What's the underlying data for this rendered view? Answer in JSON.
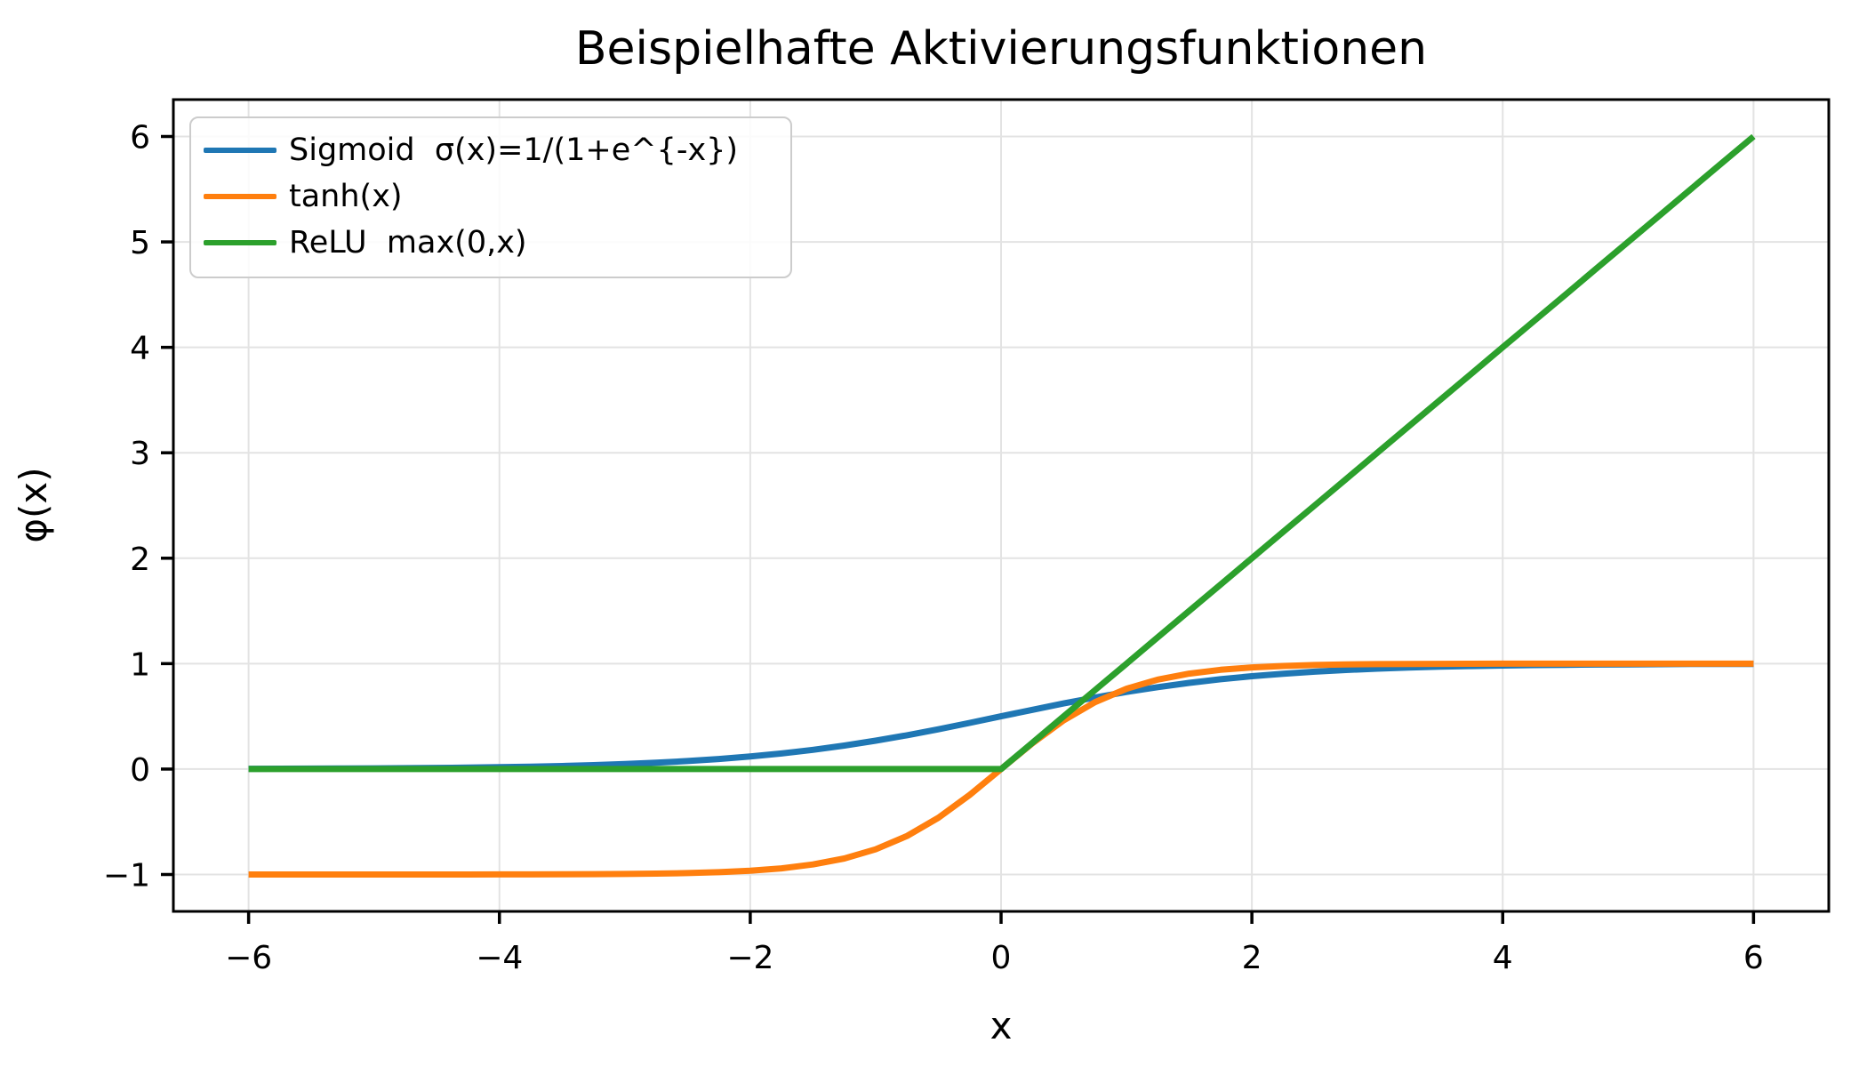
{
  "figure": {
    "background": "#ffffff",
    "frame_color": "#000000",
    "grid_color": "#e3e3e3"
  },
  "chart_data": {
    "type": "line",
    "title": "Beispielhafte Aktivierungsfunktionen",
    "xlabel": "x",
    "ylabel": "φ(x)",
    "xlim": [
      -6.6,
      6.6
    ],
    "ylim": [
      -1.35,
      6.35
    ],
    "xticks": [
      -6,
      -4,
      -2,
      0,
      2,
      4,
      6
    ],
    "yticks": [
      -1,
      0,
      1,
      2,
      3,
      4,
      5,
      6
    ],
    "grid": true,
    "legend_position": "upper left",
    "x": [
      -6,
      -5.75,
      -5.5,
      -5.25,
      -5,
      -4.75,
      -4.5,
      -4.25,
      -4,
      -3.75,
      -3.5,
      -3.25,
      -3,
      -2.75,
      -2.5,
      -2.25,
      -2,
      -1.75,
      -1.5,
      -1.25,
      -1,
      -0.75,
      -0.5,
      -0.25,
      0,
      0.25,
      0.5,
      0.75,
      1,
      1.25,
      1.5,
      1.75,
      2,
      2.25,
      2.5,
      2.75,
      3,
      3.25,
      3.5,
      3.75,
      4,
      4.25,
      4.5,
      4.75,
      5,
      5.25,
      5.5,
      5.75,
      6
    ],
    "series": [
      {
        "name": "Sigmoid  σ(x)=1/(1+e^{-x})",
        "color": "#1f77b4",
        "values": [
          0.0025,
          0.0032,
          0.0041,
          0.0052,
          0.0067,
          0.0086,
          0.011,
          0.0141,
          0.018,
          0.023,
          0.0293,
          0.0374,
          0.0474,
          0.0601,
          0.0759,
          0.0953,
          0.1192,
          0.148,
          0.1824,
          0.2227,
          0.2689,
          0.3208,
          0.3775,
          0.4378,
          0.5,
          0.5622,
          0.6225,
          0.6792,
          0.7311,
          0.7773,
          0.8176,
          0.852,
          0.8808,
          0.9047,
          0.9241,
          0.9399,
          0.9526,
          0.9626,
          0.9707,
          0.977,
          0.982,
          0.9859,
          0.989,
          0.9914,
          0.9933,
          0.9948,
          0.9959,
          0.9968,
          0.9975
        ]
      },
      {
        "name": "tanh(x)",
        "color": "#ff7f0e",
        "values": [
          -1,
          -1,
          -1,
          -0.9999,
          -0.9999,
          -0.9999,
          -0.9998,
          -0.9996,
          -0.9993,
          -0.9989,
          -0.9982,
          -0.997,
          -0.9951,
          -0.9919,
          -0.9866,
          -0.978,
          -0.964,
          -0.9414,
          -0.9051,
          -0.8483,
          -0.7616,
          -0.6351,
          -0.4621,
          -0.2449,
          0,
          0.2449,
          0.4621,
          0.6351,
          0.7616,
          0.8483,
          0.9051,
          0.9414,
          0.964,
          0.978,
          0.9866,
          0.9919,
          0.9951,
          0.997,
          0.9982,
          0.9989,
          0.9993,
          0.9996,
          0.9998,
          0.9999,
          0.9999,
          1,
          1,
          1,
          1
        ]
      },
      {
        "name": "ReLU  max(0,x)",
        "color": "#2ca02c",
        "values": [
          0,
          0,
          0,
          0,
          0,
          0,
          0,
          0,
          0,
          0,
          0,
          0,
          0,
          0,
          0,
          0,
          0,
          0,
          0,
          0,
          0,
          0,
          0,
          0,
          0,
          0.25,
          0.5,
          0.75,
          1,
          1.25,
          1.5,
          1.75,
          2,
          2.25,
          2.5,
          2.75,
          3,
          3.25,
          3.5,
          3.75,
          4,
          4.25,
          4.5,
          4.75,
          5,
          5.25,
          5.5,
          5.75,
          6
        ]
      }
    ]
  }
}
